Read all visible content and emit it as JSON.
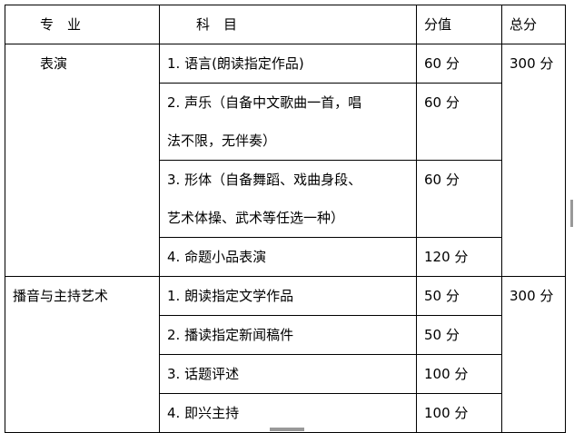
{
  "headers": {
    "major": "专　业",
    "subject": "科　目",
    "score": "分值",
    "total": "总分"
  },
  "groups": [
    {
      "major": "表演",
      "total": "300 分",
      "items": [
        {
          "subject": "1. 语言(朗读指定作品)",
          "score": "60 分"
        },
        {
          "subject_line1": "2. 声乐（自备中文歌曲一首，唱",
          "subject_line2": "法不限，无伴奏）",
          "score": "60 分"
        },
        {
          "subject_line1": "3. 形体（自备舞蹈、戏曲身段、",
          "subject_line2": "艺术体操、武术等任选一种）",
          "score": "60 分"
        },
        {
          "subject": "4. 命题小品表演",
          "score": "120 分"
        }
      ]
    },
    {
      "major": "播音与主持艺术",
      "total": "300 分",
      "items": [
        {
          "subject": "1. 朗读指定文学作品",
          "score": "50 分"
        },
        {
          "subject": "2. 播读指定新闻稿件",
          "score": "50 分"
        },
        {
          "subject": "3. 话题评述",
          "score": "100 分"
        },
        {
          "subject": "4. 即兴主持",
          "score": "100 分"
        }
      ]
    }
  ]
}
